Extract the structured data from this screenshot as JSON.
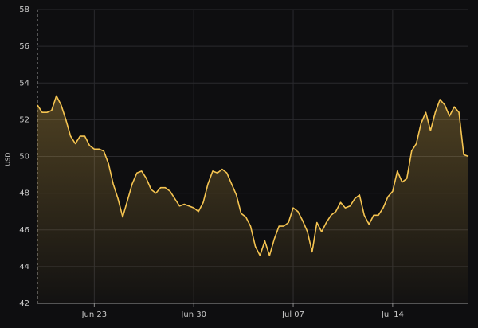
{
  "chart_data": {
    "type": "line",
    "ylabel": "USD",
    "color": "#f5c451",
    "grid": true,
    "ylim": [
      42,
      58
    ],
    "yticks": [
      42,
      44,
      46,
      48,
      50,
      52,
      54,
      56,
      58
    ],
    "categories": [
      null,
      null,
      null,
      null,
      null,
      null,
      null,
      null,
      null,
      null,
      null,
      null,
      "Jun 23",
      null,
      null,
      null,
      null,
      null,
      null,
      null,
      null,
      null,
      null,
      null,
      null,
      null,
      null,
      null,
      null,
      null,
      null,
      null,
      null,
      "Jun 30",
      null,
      null,
      null,
      null,
      null,
      null,
      null,
      null,
      null,
      null,
      null,
      null,
      null,
      null,
      null,
      null,
      null,
      null,
      null,
      null,
      "Jul 07",
      null,
      null,
      null,
      null,
      null,
      null,
      null,
      null,
      null,
      null,
      null,
      null,
      null,
      null,
      null,
      null,
      null,
      null,
      null,
      null,
      "Jul 14",
      null,
      null,
      null,
      null,
      null,
      null,
      null,
      null,
      null,
      null,
      null,
      null,
      null,
      null,
      null,
      null
    ],
    "values": [
      52.8,
      52.4,
      52.4,
      52.5,
      53.3,
      52.8,
      52.0,
      51.1,
      50.7,
      51.1,
      51.1,
      50.6,
      50.4,
      50.4,
      50.3,
      49.6,
      48.5,
      47.7,
      46.7,
      47.6,
      48.5,
      49.1,
      49.2,
      48.8,
      48.2,
      48.0,
      48.3,
      48.3,
      48.1,
      47.7,
      47.3,
      47.4,
      47.3,
      47.2,
      47.0,
      47.5,
      48.5,
      49.2,
      49.1,
      49.3,
      49.1,
      48.5,
      47.9,
      46.9,
      46.7,
      46.2,
      45.1,
      44.6,
      45.4,
      44.6,
      45.5,
      46.2,
      46.2,
      46.4,
      47.2,
      47.0,
      46.5,
      45.9,
      44.8,
      46.4,
      45.9,
      46.4,
      46.8,
      47.0,
      47.5,
      47.2,
      47.3,
      47.7,
      47.9,
      46.8,
      46.3,
      46.8,
      46.8,
      47.2,
      47.8,
      48.1,
      49.2,
      48.6,
      48.8,
      50.3,
      50.7,
      51.8,
      52.4,
      51.4,
      52.4,
      53.1,
      52.8,
      52.2,
      52.7,
      52.4,
      50.1,
      50.0
    ]
  }
}
